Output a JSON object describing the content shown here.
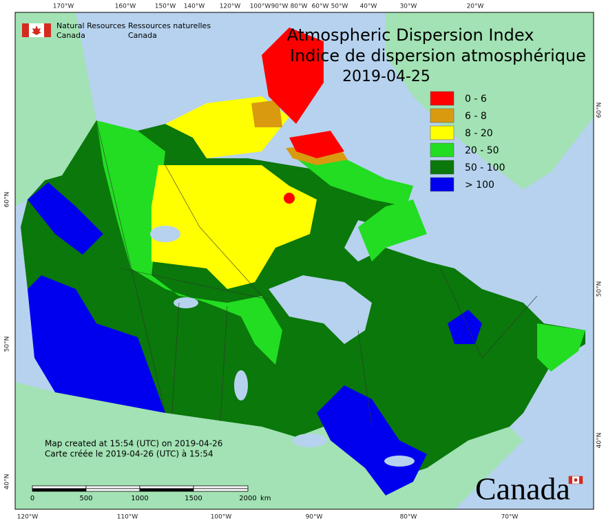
{
  "title": {
    "line1": "Atmospheric Dispersion Index",
    "line2": "Indice de dispersion atmosphérique",
    "date": "2019-04-25"
  },
  "agency": {
    "en": [
      "Natural Resources",
      "Canada"
    ],
    "fr": [
      "Ressources naturelles",
      "Canada"
    ]
  },
  "legend": [
    {
      "label": "0 - 6",
      "color": "#ff0000"
    },
    {
      "label": "6 - 8",
      "color": "#d99a10"
    },
    {
      "label": "8 - 20",
      "color": "#ffff00"
    },
    {
      "label": "20 - 50",
      "color": "#22dd22"
    },
    {
      "label": "50 - 100",
      "color": "#0a780a"
    },
    {
      "label": "> 100",
      "color": "#0000ee"
    }
  ],
  "graticule": {
    "top": [
      "170°W",
      "160°W",
      "150°W",
      "140°W",
      "120°W",
      "100°W",
      "90°W",
      "80°W",
      "60°W",
      "50°W",
      "40°W",
      "30°W",
      "20°W"
    ],
    "bottom": [
      "120°W",
      "110°W",
      "100°W",
      "90°W",
      "80°W",
      "70°W"
    ],
    "left": [
      "60°N",
      "50°N",
      "40°N"
    ],
    "right": [
      "60°N",
      "50°N",
      "40°N"
    ]
  },
  "credits": [
    "Map created at 15:54 (UTC) on 2019-04-26",
    "Carte créée le 2019-04-26 (UTC) à 15:54"
  ],
  "scale_bar": {
    "labels": [
      "0",
      "500",
      "1000",
      "1500",
      "2000"
    ],
    "unit": "km"
  },
  "wordmark": "Canada"
}
